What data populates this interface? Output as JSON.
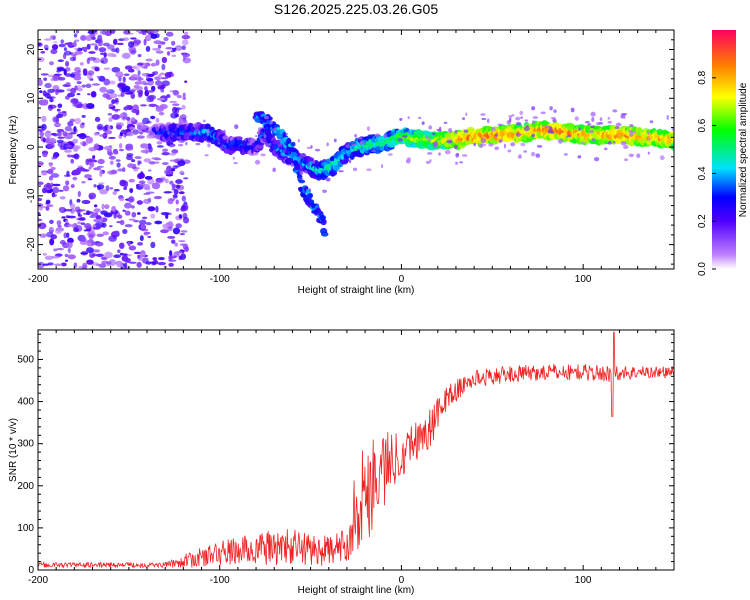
{
  "title": "S126.2025.225.03.26.G05",
  "chart_data": [
    {
      "type": "heatmap",
      "xlabel": "Height of straight line (km)",
      "ylabel": "Frequency (Hz)",
      "xlim": [
        -200,
        150
      ],
      "ylim": [
        -25,
        24
      ],
      "xticks": [
        -200,
        -100,
        0,
        100
      ],
      "yticks": [
        20,
        10,
        0,
        -10,
        -20
      ],
      "colorbar": {
        "label": "Normalized spectral amplitude",
        "range": [
          0.0,
          1.0
        ],
        "ticks": [
          0.0,
          0.2,
          0.4,
          0.6,
          0.8
        ],
        "colors": [
          "#ffffff",
          "#c080ff",
          "#5000ff",
          "#0000ff",
          "#00e0ff",
          "#00ff00",
          "#ffff00",
          "#ff8000",
          "#ff0060"
        ]
      },
      "ridge": [
        {
          "x": -135,
          "y": 3,
          "a": 0.3
        },
        {
          "x": -120,
          "y": 3,
          "a": 0.35
        },
        {
          "x": -105,
          "y": 3,
          "a": 0.4
        },
        {
          "x": -95,
          "y": 0,
          "a": 0.3
        },
        {
          "x": -90,
          "y": 0.5,
          "a": 0.35
        },
        {
          "x": -80,
          "y": 0,
          "a": 0.3
        },
        {
          "x": -75,
          "y": 3,
          "a": 0.35
        },
        {
          "x": -70,
          "y": 0,
          "a": 0.35
        },
        {
          "x": -60,
          "y": -2,
          "a": 0.4
        },
        {
          "x": -55,
          "y": -3,
          "a": 0.35
        },
        {
          "x": -45,
          "y": -5,
          "a": 0.45
        },
        {
          "x": -38,
          "y": -4,
          "a": 0.5
        },
        {
          "x": -30,
          "y": -1,
          "a": 0.45
        },
        {
          "x": -22,
          "y": 0,
          "a": 0.5
        },
        {
          "x": -10,
          "y": 1,
          "a": 0.55
        },
        {
          "x": 0,
          "y": 2,
          "a": 0.6
        },
        {
          "x": 10,
          "y": 1.5,
          "a": 0.65
        },
        {
          "x": 20,
          "y": 1.5,
          "a": 0.7
        },
        {
          "x": 30,
          "y": 1.5,
          "a": 0.8
        },
        {
          "x": 40,
          "y": 2,
          "a": 0.85
        },
        {
          "x": 55,
          "y": 2.5,
          "a": 0.85
        },
        {
          "x": 70,
          "y": 3,
          "a": 0.8
        },
        {
          "x": 80,
          "y": 3.5,
          "a": 0.85
        },
        {
          "x": 90,
          "y": 3,
          "a": 0.85
        },
        {
          "x": 100,
          "y": 2.5,
          "a": 0.8
        },
        {
          "x": 110,
          "y": 2.5,
          "a": 0.8
        },
        {
          "x": 120,
          "y": 2.5,
          "a": 0.85
        },
        {
          "x": 135,
          "y": 2,
          "a": 0.8
        },
        {
          "x": 150,
          "y": 1.5,
          "a": 0.8
        }
      ],
      "branches": [
        {
          "x": -80,
          "y": 7,
          "a": 0.3
        },
        {
          "x": -70,
          "y": 4,
          "a": 0.35
        },
        {
          "x": -60,
          "y": 0,
          "a": 0.35
        },
        {
          "x": -55,
          "y": -8,
          "a": 0.3
        },
        {
          "x": -50,
          "y": -11,
          "a": 0.3
        },
        {
          "x": -45,
          "y": -14,
          "a": 0.3
        },
        {
          "x": -42,
          "y": -17,
          "a": 0.3
        }
      ]
    },
    {
      "type": "line",
      "xlabel": "Height of straight line (km)",
      "ylabel": "SNR (10 * v/v)",
      "xlim": [
        -200,
        150
      ],
      "ylim": [
        0,
        570
      ],
      "xticks": [
        -200,
        -100,
        0,
        100
      ],
      "yticks": [
        0,
        100,
        200,
        300,
        400,
        500
      ],
      "color": "#ee2222",
      "profile": [
        {
          "x": -200,
          "y": 12,
          "n": 6
        },
        {
          "x": -130,
          "y": 12,
          "n": 6
        },
        {
          "x": -115,
          "y": 25,
          "n": 20
        },
        {
          "x": -100,
          "y": 40,
          "n": 30
        },
        {
          "x": -80,
          "y": 50,
          "n": 40
        },
        {
          "x": -60,
          "y": 55,
          "n": 45
        },
        {
          "x": -40,
          "y": 45,
          "n": 35
        },
        {
          "x": -30,
          "y": 60,
          "n": 40
        },
        {
          "x": -25,
          "y": 150,
          "n": 110
        },
        {
          "x": -15,
          "y": 220,
          "n": 130
        },
        {
          "x": -5,
          "y": 260,
          "n": 70
        },
        {
          "x": 5,
          "y": 300,
          "n": 50
        },
        {
          "x": 15,
          "y": 330,
          "n": 50
        },
        {
          "x": 25,
          "y": 410,
          "n": 30
        },
        {
          "x": 40,
          "y": 455,
          "n": 20
        },
        {
          "x": 60,
          "y": 465,
          "n": 20
        },
        {
          "x": 80,
          "y": 470,
          "n": 20
        },
        {
          "x": 100,
          "y": 470,
          "n": 20
        },
        {
          "x": 115,
          "y": 465,
          "n": 20
        },
        {
          "x": 130,
          "y": 470,
          "n": 15
        },
        {
          "x": 150,
          "y": 470,
          "n": 15
        }
      ],
      "features": [
        {
          "x": 117,
          "y": 565
        },
        {
          "x": 116,
          "y": 365
        }
      ]
    }
  ]
}
